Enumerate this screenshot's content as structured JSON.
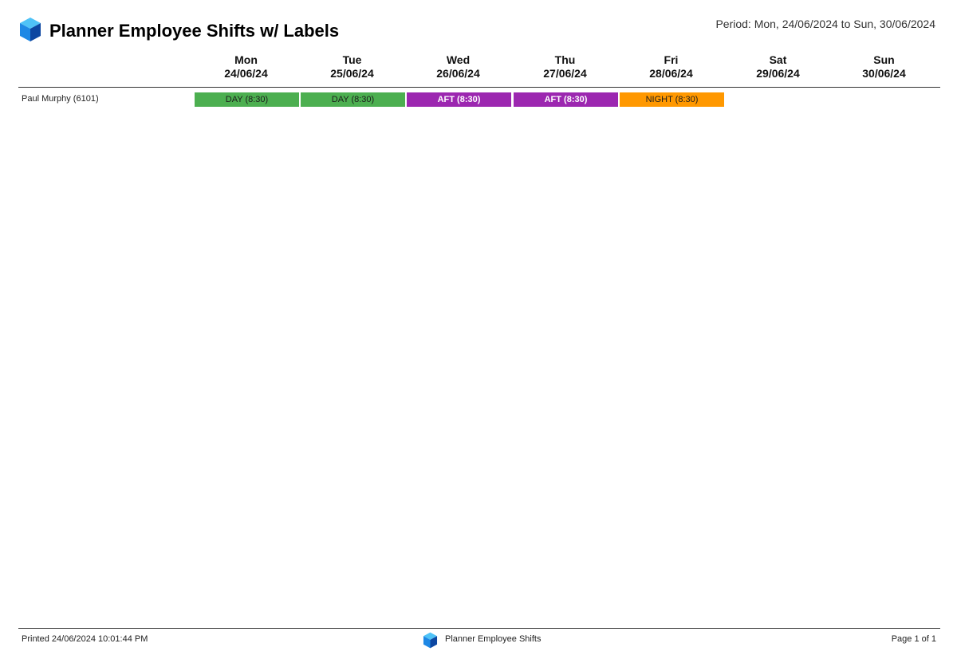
{
  "header": {
    "title": "Planner Employee Shifts w/ Labels",
    "period": "Period: Mon, 24/06/2024 to Sun, 30/06/2024",
    "logo_icon": "blue-cube-icon"
  },
  "days": [
    {
      "name": "Mon",
      "date": "24/06/24"
    },
    {
      "name": "Tue",
      "date": "25/06/24"
    },
    {
      "name": "Wed",
      "date": "26/06/24"
    },
    {
      "name": "Thu",
      "date": "27/06/24"
    },
    {
      "name": "Fri",
      "date": "28/06/24"
    },
    {
      "name": "Sat",
      "date": "29/06/24"
    },
    {
      "name": "Sun",
      "date": "30/06/24"
    }
  ],
  "employees": [
    {
      "name": "Paul Murphy (6101)",
      "shifts": [
        {
          "label": "DAY (8:30)",
          "type": "day",
          "color": "#4caf50"
        },
        {
          "label": "DAY (8:30)",
          "type": "day",
          "color": "#4caf50"
        },
        {
          "label": "AFT (8:30)",
          "type": "aft",
          "color": "#9c27b0"
        },
        {
          "label": "AFT (8:30)",
          "type": "aft",
          "color": "#9c27b0"
        },
        {
          "label": "NIGHT (8:30)",
          "type": "night",
          "color": "#ff9800"
        }
      ]
    }
  ],
  "footer": {
    "printed": "Printed 24/06/2024 10:01:44 PM",
    "center_label": "Planner Employee Shifts",
    "page": "Page 1 of 1",
    "logo_icon": "blue-cube-icon"
  }
}
